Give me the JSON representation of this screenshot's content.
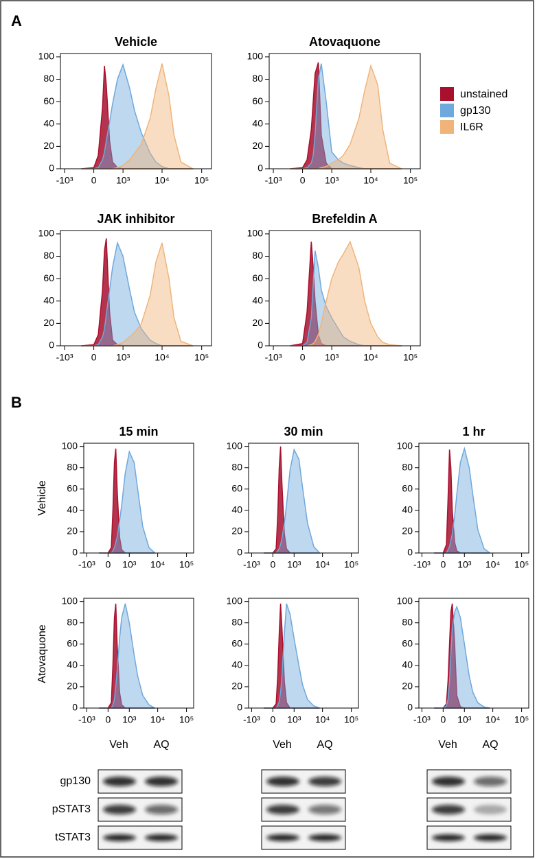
{
  "panel_labels": [
    "A",
    "B"
  ],
  "row_labels": [
    "Vehicle",
    "Atovaquone"
  ],
  "blots": {
    "lanes": [
      "Veh",
      "AQ"
    ],
    "proteins": [
      "gp130",
      "pSTAT3",
      "tSTAT3"
    ]
  },
  "chart_data": [
    {
      "type": "area",
      "title": "Vehicle",
      "legend": true,
      "x_scale": "biexponential",
      "x": [
        -300,
        0,
        100,
        200,
        250,
        300,
        400,
        500,
        700,
        1000,
        1500,
        2000,
        3000,
        5000,
        7000,
        10000,
        15000,
        20000,
        30000,
        60000
      ],
      "series": [
        {
          "name": "unstained",
          "color": "#a8102e",
          "values": [
            0,
            1,
            12,
            55,
            92,
            75,
            25,
            6,
            1,
            0,
            0,
            0,
            0,
            0,
            0,
            0,
            0,
            0,
            0,
            0
          ]
        },
        {
          "name": "gp130",
          "color": "#6fa8dc",
          "values": [
            0,
            0,
            1,
            8,
            15,
            25,
            42,
            58,
            80,
            93,
            72,
            52,
            32,
            14,
            6,
            2,
            0,
            0,
            0,
            0
          ]
        },
        {
          "name": "IL6R",
          "color": "#f0b47a",
          "values": [
            0,
            0,
            0,
            0,
            0,
            0,
            0,
            0,
            1,
            3,
            8,
            14,
            22,
            45,
            72,
            94,
            65,
            30,
            6,
            0
          ]
        }
      ],
      "xlim": [
        -1290,
        177000
      ],
      "ylim": [
        0,
        103
      ],
      "xticks": [
        {
          "value": -1000,
          "label": "-10³"
        },
        0,
        {
          "value": 1000,
          "label": "10³"
        },
        {
          "value": 10000,
          "label": "10⁴"
        },
        {
          "value": 100000,
          "label": "10⁵"
        }
      ],
      "yticks": [
        0,
        20,
        40,
        60,
        80,
        100
      ]
    },
    {
      "type": "area",
      "title": "Atovaquone",
      "x_scale": "biexponential",
      "x": [
        -300,
        0,
        100,
        200,
        250,
        300,
        400,
        500,
        700,
        1000,
        1500,
        2000,
        3000,
        5000,
        7000,
        10000,
        15000,
        20000,
        30000,
        60000
      ],
      "series": [
        {
          "name": "unstained",
          "color": "#a8102e",
          "values": [
            0,
            1,
            8,
            35,
            60,
            85,
            95,
            30,
            5,
            0,
            0,
            0,
            0,
            0,
            0,
            0,
            0,
            0,
            0,
            0
          ]
        },
        {
          "name": "gp130",
          "color": "#6fa8dc",
          "values": [
            0,
            0,
            1,
            5,
            12,
            30,
            80,
            94,
            60,
            15,
            8,
            5,
            3,
            1,
            0,
            0,
            0,
            0,
            0,
            0
          ]
        },
        {
          "name": "IL6R",
          "color": "#f0b47a",
          "values": [
            0,
            0,
            0,
            0,
            0,
            0,
            0,
            1,
            2,
            5,
            8,
            12,
            22,
            45,
            70,
            92,
            75,
            35,
            5,
            0
          ]
        }
      ],
      "xlim": [
        -1290,
        177000
      ],
      "ylim": [
        0,
        103
      ],
      "xticks": [
        {
          "value": -1000,
          "label": "-10³"
        },
        0,
        {
          "value": 1000,
          "label": "10³"
        },
        {
          "value": 10000,
          "label": "10⁴"
        },
        {
          "value": 100000,
          "label": "10⁵"
        }
      ],
      "yticks": [
        0,
        20,
        40,
        60,
        80,
        100
      ]
    },
    {
      "type": "area",
      "title": "JAK inhibitor",
      "x_scale": "biexponential",
      "x": [
        -300,
        0,
        100,
        200,
        250,
        300,
        400,
        500,
        700,
        1000,
        1500,
        2000,
        3000,
        5000,
        7000,
        10000,
        15000,
        20000,
        30000,
        60000
      ],
      "series": [
        {
          "name": "unstained",
          "color": "#a8102e",
          "values": [
            0,
            1,
            10,
            50,
            85,
            96,
            30,
            5,
            1,
            0,
            0,
            0,
            0,
            0,
            0,
            0,
            0,
            0,
            0,
            0
          ]
        },
        {
          "name": "gp130",
          "color": "#6fa8dc",
          "values": [
            0,
            0,
            1,
            8,
            15,
            28,
            50,
            70,
            92,
            80,
            50,
            30,
            15,
            5,
            2,
            0,
            0,
            0,
            0,
            0
          ]
        },
        {
          "name": "IL6R",
          "color": "#f0b47a",
          "values": [
            0,
            0,
            0,
            0,
            0,
            0,
            0,
            0,
            1,
            3,
            8,
            12,
            20,
            45,
            75,
            92,
            60,
            25,
            4,
            0
          ]
        }
      ],
      "xlim": [
        -1290,
        177000
      ],
      "ylim": [
        0,
        103
      ],
      "xticks": [
        {
          "value": -1000,
          "label": "-10³"
        },
        0,
        {
          "value": 1000,
          "label": "10³"
        },
        {
          "value": 10000,
          "label": "10⁴"
        },
        {
          "value": 100000,
          "label": "10⁵"
        }
      ],
      "yticks": [
        0,
        20,
        40,
        60,
        80,
        100
      ]
    },
    {
      "type": "area",
      "title": "Brefeldin A",
      "x_scale": "biexponential",
      "x": [
        -300,
        0,
        100,
        200,
        250,
        300,
        400,
        500,
        700,
        1000,
        1500,
        2000,
        3000,
        5000,
        7000,
        10000,
        15000,
        20000,
        30000,
        60000
      ],
      "series": [
        {
          "name": "unstained",
          "color": "#a8102e",
          "values": [
            0,
            2,
            30,
            93,
            70,
            40,
            10,
            2,
            0,
            0,
            0,
            0,
            0,
            0,
            0,
            0,
            0,
            0,
            0,
            0
          ]
        },
        {
          "name": "gp130",
          "color": "#6fa8dc",
          "values": [
            0,
            0,
            3,
            25,
            55,
            85,
            70,
            50,
            35,
            25,
            15,
            8,
            4,
            1,
            0,
            0,
            0,
            0,
            0,
            0
          ]
        },
        {
          "name": "IL6R",
          "color": "#f0b47a",
          "values": [
            0,
            0,
            0,
            1,
            2,
            4,
            10,
            20,
            40,
            60,
            75,
            82,
            93,
            70,
            40,
            20,
            8,
            3,
            1,
            0
          ]
        }
      ],
      "xlim": [
        -1290,
        177000
      ],
      "ylim": [
        0,
        103
      ],
      "xticks": [
        {
          "value": -1000,
          "label": "-10³"
        },
        0,
        {
          "value": 1000,
          "label": "10³"
        },
        {
          "value": 10000,
          "label": "10⁴"
        },
        {
          "value": 100000,
          "label": "10⁵"
        }
      ],
      "yticks": [
        0,
        20,
        40,
        60,
        80,
        100
      ]
    },
    {
      "type": "area",
      "title": "15 min",
      "x_scale": "biexponential",
      "x": [
        -300,
        0,
        100,
        150,
        200,
        250,
        300,
        400,
        500,
        700,
        1000,
        1500,
        2000,
        3000,
        5000,
        8000
      ],
      "series": [
        {
          "name": "unstained",
          "color": "#a8102e",
          "values": [
            0,
            0,
            5,
            40,
            85,
            98,
            60,
            15,
            3,
            0,
            0,
            0,
            0,
            0,
            0,
            0
          ]
        },
        {
          "name": "gp130",
          "color": "#6fa8dc",
          "values": [
            0,
            0,
            0,
            2,
            5,
            10,
            15,
            30,
            45,
            75,
            95,
            85,
            60,
            25,
            5,
            0
          ]
        }
      ],
      "xlim": [
        -1290,
        177000
      ],
      "ylim": [
        0,
        103
      ],
      "xticks": [
        {
          "value": -1000,
          "label": "-10³"
        },
        0,
        {
          "value": 1000,
          "label": "10³"
        },
        {
          "value": 10000,
          "label": "10⁴"
        },
        {
          "value": 100000,
          "label": "10⁵"
        }
      ],
      "yticks": [
        0,
        20,
        40,
        60,
        80,
        100
      ]
    },
    {
      "type": "area",
      "title": "30 min",
      "x_scale": "biexponential",
      "x": [
        -300,
        0,
        100,
        150,
        200,
        250,
        300,
        400,
        500,
        700,
        1000,
        1500,
        2000,
        3000,
        5000,
        8000
      ],
      "series": [
        {
          "name": "unstained",
          "color": "#a8102e",
          "values": [
            0,
            0,
            4,
            35,
            80,
            100,
            65,
            18,
            4,
            0,
            0,
            0,
            0,
            0,
            0,
            0
          ]
        },
        {
          "name": "gp130",
          "color": "#6fa8dc",
          "values": [
            0,
            0,
            0,
            2,
            4,
            8,
            14,
            28,
            45,
            78,
            97,
            88,
            62,
            28,
            6,
            0
          ]
        }
      ],
      "xlim": [
        -1290,
        177000
      ],
      "ylim": [
        0,
        103
      ],
      "xticks": [
        {
          "value": -1000,
          "label": "-10³"
        },
        0,
        {
          "value": 1000,
          "label": "10³"
        },
        {
          "value": 10000,
          "label": "10⁴"
        },
        {
          "value": 100000,
          "label": "10⁵"
        }
      ],
      "yticks": [
        0,
        20,
        40,
        60,
        80,
        100
      ]
    },
    {
      "type": "area",
      "title": "1 hr",
      "x_scale": "biexponential",
      "x": [
        -300,
        0,
        100,
        150,
        200,
        250,
        300,
        400,
        500,
        700,
        1000,
        1500,
        2000,
        3000,
        5000,
        8000
      ],
      "series": [
        {
          "name": "unstained",
          "color": "#a8102e",
          "values": [
            0,
            0,
            8,
            50,
            97,
            80,
            40,
            10,
            2,
            0,
            0,
            0,
            0,
            0,
            0,
            0
          ]
        },
        {
          "name": "gp130",
          "color": "#6fa8dc",
          "values": [
            0,
            0,
            0,
            3,
            6,
            12,
            18,
            35,
            55,
            85,
            98,
            80,
            55,
            22,
            4,
            0
          ]
        }
      ],
      "xlim": [
        -1290,
        177000
      ],
      "ylim": [
        0,
        103
      ],
      "xticks": [
        {
          "value": -1000,
          "label": "-10³"
        },
        0,
        {
          "value": 1000,
          "label": "10³"
        },
        {
          "value": 10000,
          "label": "10⁴"
        },
        {
          "value": 100000,
          "label": "10⁵"
        }
      ],
      "yticks": [
        0,
        20,
        40,
        60,
        80,
        100
      ]
    },
    {
      "type": "area",
      "x_scale": "biexponential",
      "x": [
        -300,
        0,
        100,
        150,
        200,
        250,
        300,
        400,
        500,
        700,
        1000,
        1500,
        2000,
        3000,
        5000,
        8000
      ],
      "series": [
        {
          "name": "unstained",
          "color": "#a8102e",
          "values": [
            0,
            0,
            5,
            40,
            85,
            98,
            60,
            15,
            3,
            0,
            0,
            0,
            0,
            0,
            0,
            0
          ]
        },
        {
          "name": "gp130",
          "color": "#6fa8dc",
          "values": [
            0,
            0,
            0,
            3,
            8,
            20,
            35,
            65,
            85,
            98,
            80,
            50,
            30,
            12,
            3,
            0
          ]
        }
      ],
      "xlim": [
        -1290,
        177000
      ],
      "ylim": [
        0,
        103
      ],
      "xticks": [
        {
          "value": -1000,
          "label": "-10³"
        },
        0,
        {
          "value": 1000,
          "label": "10³"
        },
        {
          "value": 10000,
          "label": "10⁴"
        },
        {
          "value": 100000,
          "label": "10⁵"
        }
      ],
      "yticks": [
        0,
        20,
        40,
        60,
        80,
        100
      ]
    },
    {
      "type": "area",
      "x_scale": "biexponential",
      "x": [
        -300,
        0,
        100,
        150,
        200,
        250,
        300,
        400,
        500,
        700,
        1000,
        1500,
        2000,
        3000,
        5000,
        8000
      ],
      "series": [
        {
          "name": "unstained",
          "color": "#a8102e",
          "values": [
            0,
            0,
            4,
            30,
            70,
            98,
            75,
            25,
            5,
            0,
            0,
            0,
            0,
            0,
            0,
            0
          ]
        },
        {
          "name": "gp130",
          "color": "#6fa8dc",
          "values": [
            0,
            0,
            0,
            2,
            6,
            15,
            30,
            70,
            98,
            88,
            65,
            40,
            22,
            8,
            2,
            0
          ]
        }
      ],
      "xlim": [
        -1290,
        177000
      ],
      "ylim": [
        0,
        103
      ],
      "xticks": [
        {
          "value": -1000,
          "label": "-10³"
        },
        0,
        {
          "value": 1000,
          "label": "10³"
        },
        {
          "value": 10000,
          "label": "10⁴"
        },
        {
          "value": 100000,
          "label": "10⁵"
        }
      ],
      "yticks": [
        0,
        20,
        40,
        60,
        80,
        100
      ]
    },
    {
      "type": "area",
      "x_scale": "biexponential",
      "x": [
        -300,
        0,
        100,
        150,
        200,
        250,
        300,
        400,
        500,
        700,
        1000,
        1500,
        2000,
        3000,
        5000,
        8000
      ],
      "series": [
        {
          "name": "unstained",
          "color": "#a8102e",
          "values": [
            0,
            0,
            4,
            25,
            60,
            90,
            98,
            60,
            12,
            1,
            0,
            0,
            0,
            0,
            0,
            0
          ]
        },
        {
          "name": "gp130",
          "color": "#6fa8dc",
          "values": [
            0,
            0,
            2,
            8,
            25,
            50,
            75,
            90,
            95,
            85,
            60,
            30,
            15,
            5,
            1,
            0
          ]
        }
      ],
      "xlim": [
        -1290,
        177000
      ],
      "ylim": [
        0,
        103
      ],
      "xticks": [
        {
          "value": -1000,
          "label": "-10³"
        },
        0,
        {
          "value": 1000,
          "label": "10³"
        },
        {
          "value": 10000,
          "label": "10⁴"
        },
        {
          "value": 100000,
          "label": "10⁵"
        }
      ],
      "yticks": [
        0,
        20,
        40,
        60,
        80,
        100
      ]
    }
  ]
}
